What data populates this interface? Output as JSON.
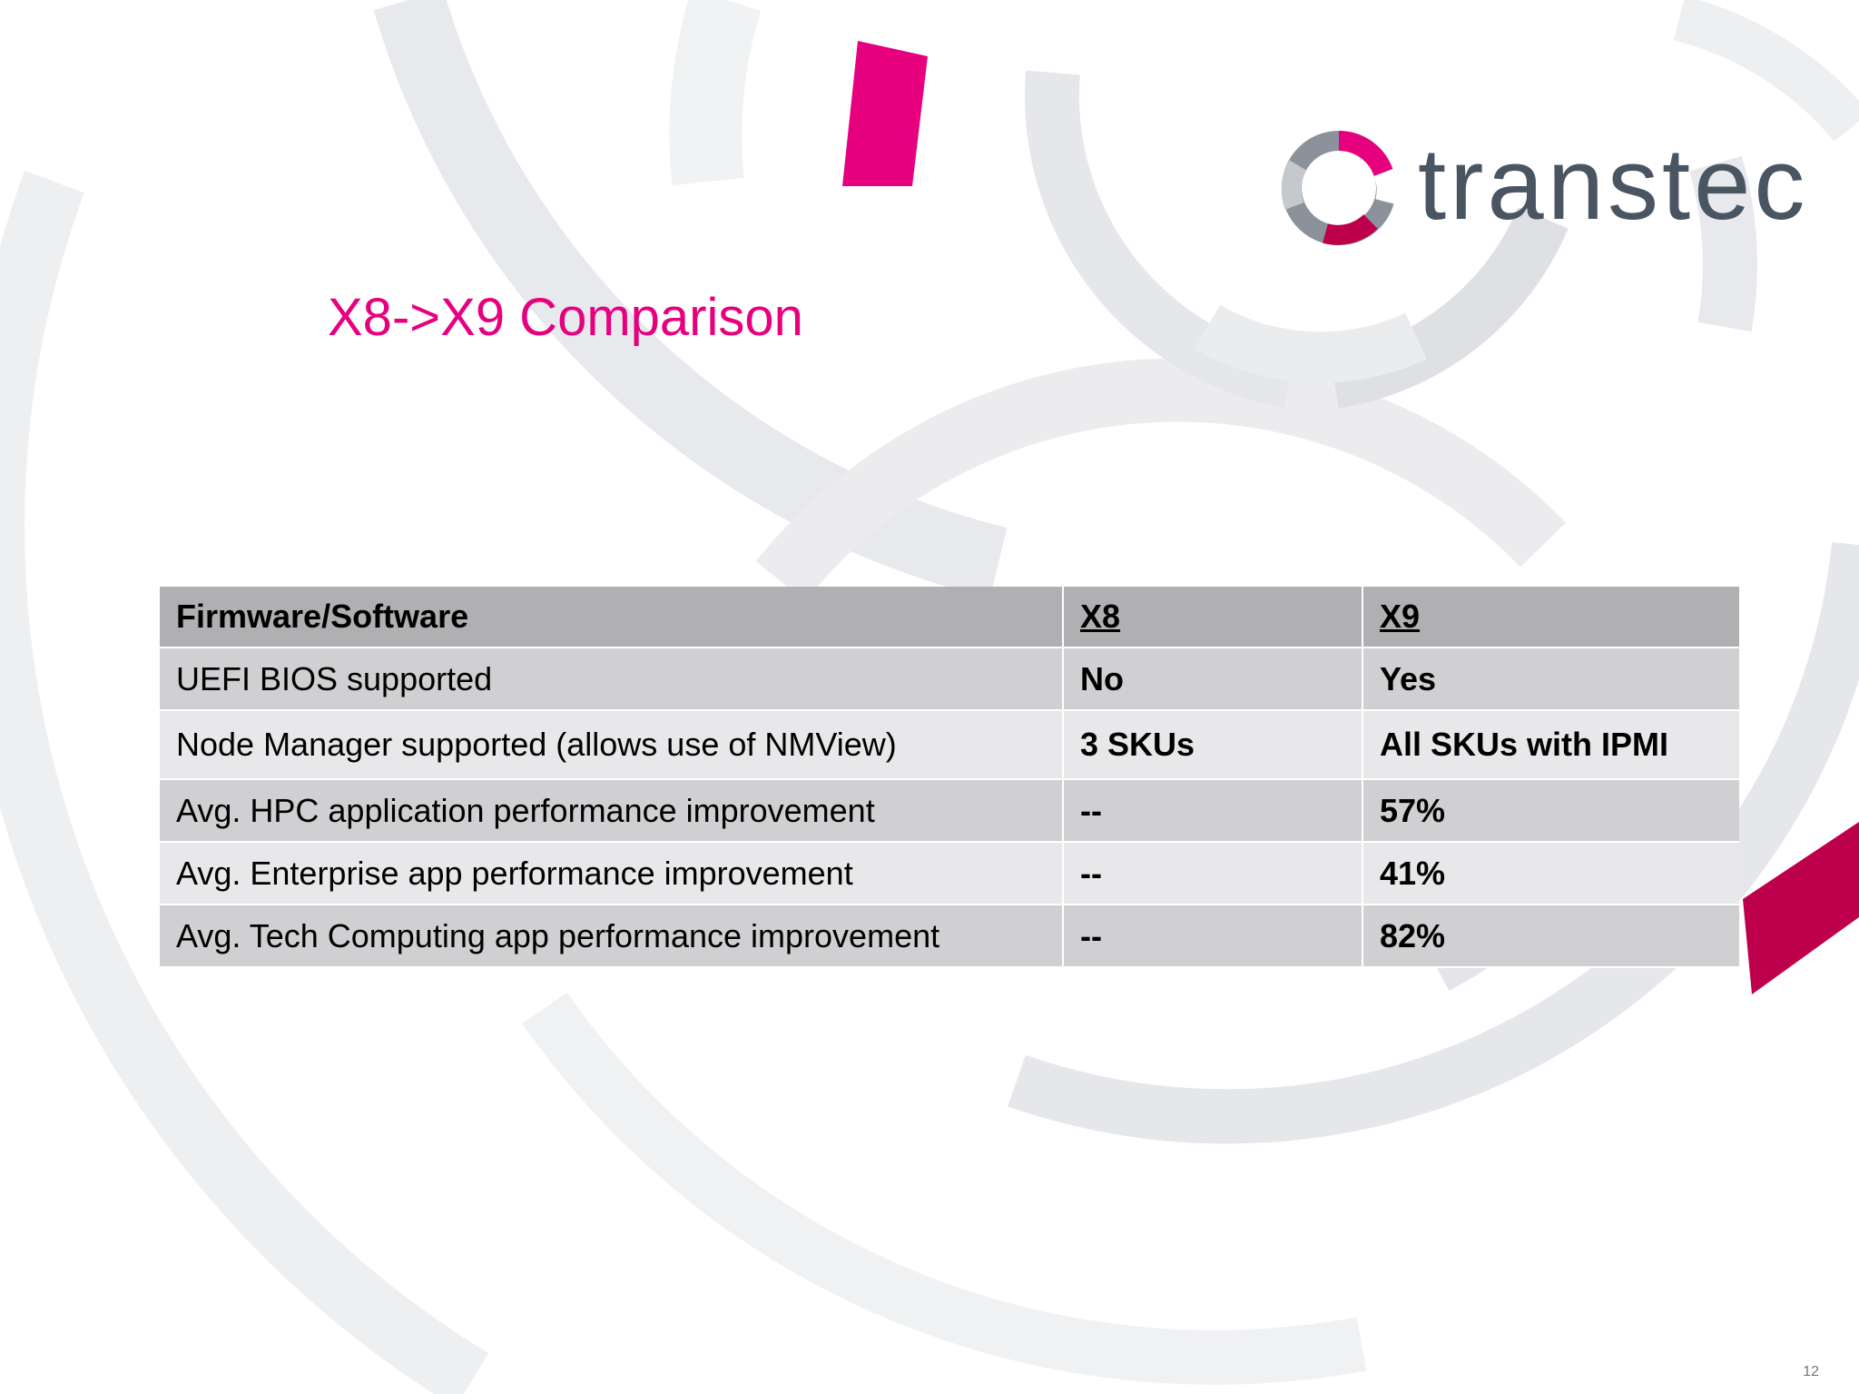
{
  "slide": {
    "title": "X8->X9 Comparison",
    "page_number": "12"
  },
  "logo": {
    "text": "transtec",
    "icon": "transtec-ring-logo-icon"
  },
  "colors": {
    "accent": "#e6007e",
    "logo_text": "#4a5562",
    "header_row": "#b0b0b3",
    "row_dark": "#d0d0d3",
    "row_light": "#e8e8ea",
    "arc_gray": "#e6e7ea",
    "arc_crimson": "#be004c"
  },
  "table": {
    "headers": [
      "Firmware/Software",
      "X8",
      "X9"
    ],
    "rows": [
      [
        "UEFI BIOS supported",
        "No",
        "Yes"
      ],
      [
        "Node Manager supported (allows use of NMView)",
        "3 SKUs",
        "All SKUs with IPMI"
      ],
      [
        "Avg. HPC application performance improvement",
        "--",
        "57%"
      ],
      [
        "Avg. Enterprise app performance improvement",
        "--",
        "41%"
      ],
      [
        "Avg. Tech Computing app performance improvement",
        "--",
        "82%"
      ]
    ]
  }
}
